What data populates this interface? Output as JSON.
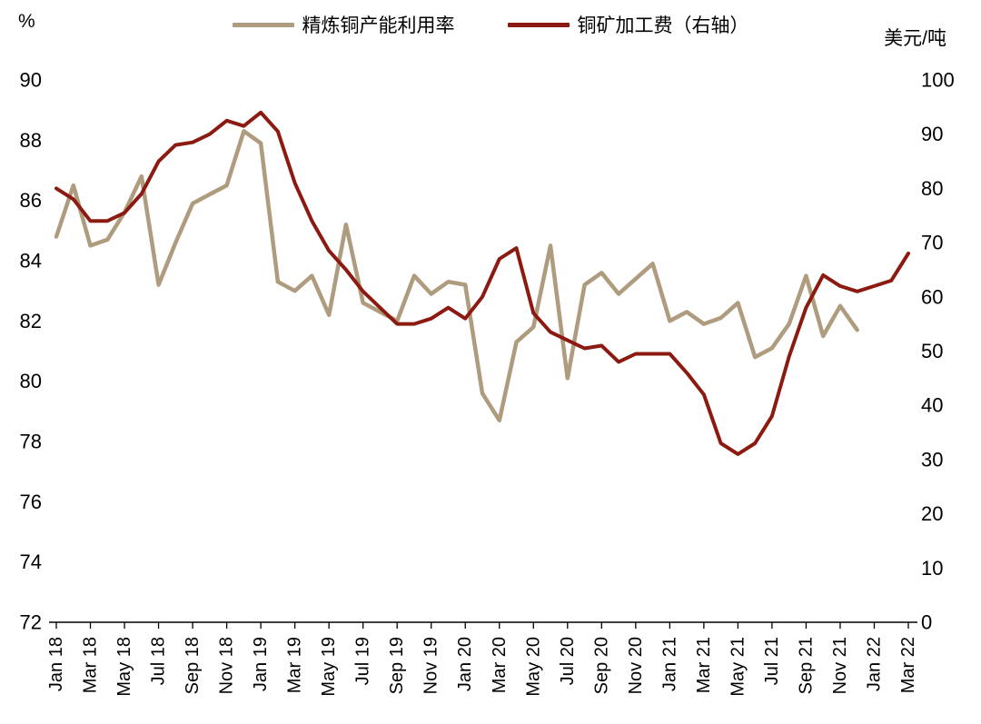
{
  "chart_data": {
    "type": "line",
    "title": "",
    "legend_position": "top",
    "grid": false,
    "left_axis": {
      "unit": "%",
      "min": 72,
      "max": 90,
      "step": 2
    },
    "right_axis": {
      "unit": "美元/吨",
      "min": 0,
      "max": 100,
      "step": 10
    },
    "x_tick_every": 2,
    "categories": [
      "Jan 18",
      "Feb 18",
      "Mar 18",
      "Apr 18",
      "May 18",
      "Jun 18",
      "Jul 18",
      "Aug 18",
      "Sep 18",
      "Oct 18",
      "Nov 18",
      "Dec 18",
      "Jan 19",
      "Feb 19",
      "Mar 19",
      "Apr 19",
      "May 19",
      "Jun 19",
      "Jul 19",
      "Aug 19",
      "Sep 19",
      "Oct 19",
      "Nov 19",
      "Dec 19",
      "Jan 20",
      "Feb 20",
      "Mar 20",
      "Apr 20",
      "May 20",
      "Jun 20",
      "Jul 20",
      "Aug 20",
      "Sep 20",
      "Oct 20",
      "Nov 20",
      "Dec 20",
      "Jan 21",
      "Feb 21",
      "Mar 21",
      "Apr 21",
      "May 21",
      "Jun 21",
      "Jul 21",
      "Aug 21",
      "Sep 21",
      "Oct 21",
      "Nov 21",
      "Dec 21",
      "Jan 22",
      "Feb 22",
      "Mar 22"
    ],
    "series": [
      {
        "name": "精炼铜产能利用率",
        "axis": "left",
        "color": "#AF9B7D",
        "values": [
          84.8,
          86.5,
          84.5,
          84.7,
          85.6,
          86.8,
          83.2,
          84.6,
          85.9,
          86.2,
          86.5,
          88.3,
          87.9,
          83.3,
          83.0,
          83.5,
          82.2,
          85.2,
          82.6,
          82.3,
          82.0,
          83.5,
          82.9,
          83.3,
          83.2,
          79.6,
          78.7,
          81.3,
          81.8,
          84.5,
          80.1,
          83.2,
          83.6,
          82.9,
          83.4,
          83.9,
          82.0,
          82.3,
          81.9,
          82.1,
          82.6,
          80.8,
          81.1,
          81.9,
          83.5,
          81.5,
          82.5,
          81.7,
          null,
          null,
          null
        ]
      },
      {
        "name": "铜矿加工费（右轴）",
        "axis": "right",
        "color": "#8C1A11",
        "values": [
          80,
          78,
          74,
          74,
          75.5,
          79,
          85,
          88,
          88.5,
          90,
          92.5,
          91.5,
          94,
          90.5,
          81,
          74,
          68.5,
          65,
          61,
          58,
          55,
          55,
          56,
          58,
          56,
          60,
          67,
          69,
          57,
          53.5,
          52,
          50.5,
          51,
          48,
          49.5,
          49.5,
          49.5,
          46,
          42,
          33,
          31,
          33,
          38,
          49,
          58,
          64,
          62,
          61,
          62,
          63,
          68
        ]
      }
    ]
  }
}
